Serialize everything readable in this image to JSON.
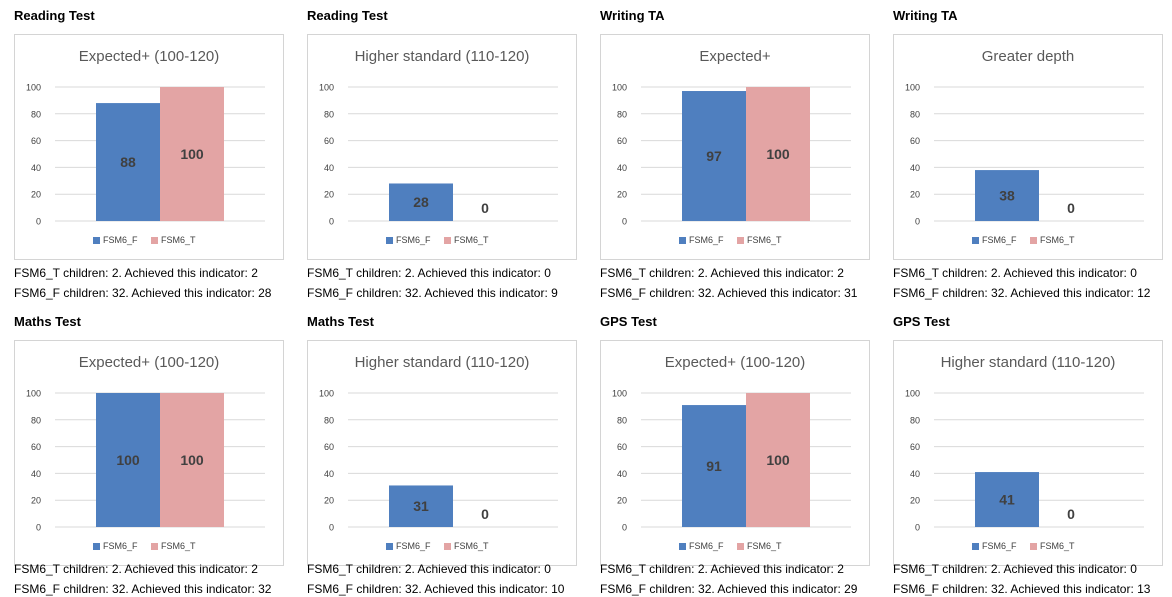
{
  "colors": {
    "fsm_f": "#4f7fbf",
    "fsm_t": "#e3a4a4",
    "grid": "#d9d9d9",
    "axis_text": "#404040"
  },
  "legend": {
    "fsm_f": "FSM6_F",
    "fsm_t": "FSM6_T"
  },
  "panels": [
    {
      "title": "Reading Test",
      "chart_data": {
        "type": "bar",
        "title": "Expected+ (100-120)",
        "categories": [
          ""
        ],
        "series": [
          {
            "name": "FSM6_F",
            "values": [
              88
            ]
          },
          {
            "name": "FSM6_T",
            "values": [
              100
            ]
          }
        ],
        "ylim": [
          0,
          100
        ],
        "yticks": [
          0,
          20,
          40,
          60,
          80,
          100
        ],
        "grid": true,
        "legend": "bottom",
        "data_labels": [
          "88",
          "100"
        ]
      },
      "notes": [
        "FSM6_T children: 2. Achieved this indicator: 2",
        "FSM6_F children: 32. Achieved this indicator: 28"
      ]
    },
    {
      "title": "Reading Test",
      "chart_data": {
        "type": "bar",
        "title": "Higher standard (110-120)",
        "categories": [
          ""
        ],
        "series": [
          {
            "name": "FSM6_F",
            "values": [
              28
            ]
          },
          {
            "name": "FSM6_T",
            "values": [
              0
            ]
          }
        ],
        "ylim": [
          0,
          100
        ],
        "yticks": [
          0,
          20,
          40,
          60,
          80,
          100
        ],
        "grid": true,
        "legend": "bottom",
        "data_labels": [
          "28",
          "0"
        ]
      },
      "notes": [
        "FSM6_T children: 2. Achieved this indicator: 0",
        "FSM6_F children: 32. Achieved this indicator: 9"
      ]
    },
    {
      "title": "Writing TA",
      "chart_data": {
        "type": "bar",
        "title": "Expected+",
        "categories": [
          ""
        ],
        "series": [
          {
            "name": "FSM6_F",
            "values": [
              97
            ]
          },
          {
            "name": "FSM6_T",
            "values": [
              100
            ]
          }
        ],
        "ylim": [
          0,
          100
        ],
        "yticks": [
          0,
          20,
          40,
          60,
          80,
          100
        ],
        "grid": true,
        "legend": "bottom",
        "data_labels": [
          "97",
          "100"
        ]
      },
      "notes": [
        "FSM6_T children: 2. Achieved this indicator: 2",
        "FSM6_F children: 32. Achieved this indicator: 31"
      ]
    },
    {
      "title": "Writing TA",
      "chart_data": {
        "type": "bar",
        "title": "Greater depth",
        "categories": [
          ""
        ],
        "series": [
          {
            "name": "FSM6_F",
            "values": [
              38
            ]
          },
          {
            "name": "FSM6_T",
            "values": [
              0
            ]
          }
        ],
        "ylim": [
          0,
          100
        ],
        "yticks": [
          0,
          20,
          40,
          60,
          80,
          100
        ],
        "grid": true,
        "legend": "bottom",
        "data_labels": [
          "38",
          "0"
        ]
      },
      "notes": [
        "FSM6_T children: 2. Achieved this indicator: 0",
        "FSM6_F children: 32. Achieved this indicator: 12"
      ]
    },
    {
      "title": "Maths Test",
      "chart_data": {
        "type": "bar",
        "title": "Expected+ (100-120)",
        "categories": [
          ""
        ],
        "series": [
          {
            "name": "FSM6_F",
            "values": [
              100
            ]
          },
          {
            "name": "FSM6_T",
            "values": [
              100
            ]
          }
        ],
        "ylim": [
          0,
          100
        ],
        "yticks": [
          0,
          20,
          40,
          60,
          80,
          100
        ],
        "grid": true,
        "legend": "bottom",
        "data_labels": [
          "100",
          "100"
        ]
      },
      "notes": [
        "FSM6_T children: 2. Achieved this indicator: 2",
        "FSM6_F children: 32. Achieved this indicator: 32"
      ]
    },
    {
      "title": "Maths Test",
      "chart_data": {
        "type": "bar",
        "title": "Higher standard (110-120)",
        "categories": [
          ""
        ],
        "series": [
          {
            "name": "FSM6_F",
            "values": [
              31
            ]
          },
          {
            "name": "FSM6_T",
            "values": [
              0
            ]
          }
        ],
        "ylim": [
          0,
          100
        ],
        "yticks": [
          0,
          20,
          40,
          60,
          80,
          100
        ],
        "grid": true,
        "legend": "bottom",
        "data_labels": [
          "31",
          "0"
        ]
      },
      "notes": [
        "FSM6_T children: 2. Achieved this indicator: 0",
        "FSM6_F children: 32. Achieved this indicator: 10"
      ]
    },
    {
      "title": "GPS Test",
      "chart_data": {
        "type": "bar",
        "title": "Expected+ (100-120)",
        "categories": [
          ""
        ],
        "series": [
          {
            "name": "FSM6_F",
            "values": [
              91
            ]
          },
          {
            "name": "FSM6_T",
            "values": [
              100
            ]
          }
        ],
        "ylim": [
          0,
          100
        ],
        "yticks": [
          0,
          20,
          40,
          60,
          80,
          100
        ],
        "grid": true,
        "legend": "bottom",
        "data_labels": [
          "91",
          "100"
        ]
      },
      "notes": [
        "FSM6_T children: 2. Achieved this indicator: 2",
        "FSM6_F children: 32. Achieved this indicator: 29"
      ]
    },
    {
      "title": "GPS Test",
      "chart_data": {
        "type": "bar",
        "title": "Higher standard (110-120)",
        "categories": [
          ""
        ],
        "series": [
          {
            "name": "FSM6_F",
            "values": [
              41
            ]
          },
          {
            "name": "FSM6_T",
            "values": [
              0
            ]
          }
        ],
        "ylim": [
          0,
          100
        ],
        "yticks": [
          0,
          20,
          40,
          60,
          80,
          100
        ],
        "grid": true,
        "legend": "bottom",
        "data_labels": [
          "41",
          "0"
        ]
      },
      "notes": [
        "FSM6_T children: 2. Achieved this indicator: 0",
        "FSM6_F children: 32. Achieved this indicator: 13"
      ]
    }
  ]
}
